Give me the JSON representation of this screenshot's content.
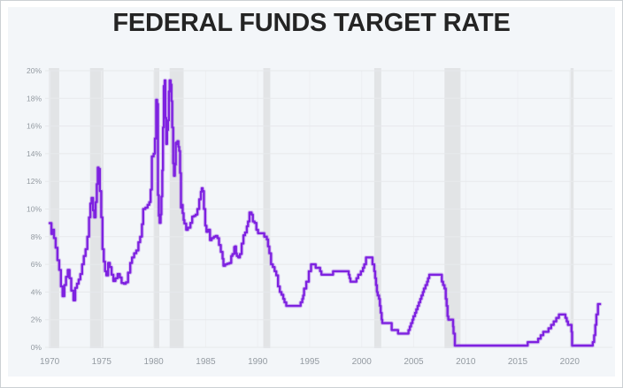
{
  "window": {
    "background": "#ffffff",
    "border_color": "#ccd0d4",
    "card_background": "#f3f6f9"
  },
  "header": {
    "title": "FEDERAL FUNDS TARGET RATE",
    "title_color": "#242424"
  },
  "chart_data": {
    "type": "line",
    "title": "FEDERAL FUNDS TARGET RATE",
    "xlabel": "",
    "ylabel": "",
    "xlim": [
      1969.57,
      2024.1
    ],
    "ylim": [
      0,
      20
    ],
    "x_ticks": [
      1970,
      1975,
      1980,
      1985,
      1990,
      1995,
      2000,
      2005,
      2010,
      2015,
      2020
    ],
    "y_ticks": [
      0,
      2,
      4,
      6,
      8,
      10,
      12,
      14,
      16,
      18,
      20
    ],
    "y_tick_suffix": "%",
    "grid": true,
    "legend_position": "none",
    "line_color": "#7e22e0",
    "line_halo_color": "rgba(126,34,224,0.25)",
    "axis_label_color": "#939aa1",
    "gridline_color": "#e7e9ec",
    "minor_vgrid_color": "#edeff2",
    "recession_band_color": "#e2e4e6",
    "recession_bands": [
      [
        1969.92,
        1970.92
      ],
      [
        1973.88,
        1975.17
      ],
      [
        1980.04,
        1980.54
      ],
      [
        1981.54,
        1982.88
      ],
      [
        1990.54,
        1991.21
      ],
      [
        2001.21,
        2001.88
      ],
      [
        2007.96,
        2009.5
      ],
      [
        2020.08,
        2020.38
      ]
    ],
    "series": [
      {
        "name": "Federal funds target rate",
        "interpolation": "step-after",
        "points": [
          [
            1970.0,
            8.98
          ],
          [
            1970.17,
            8.2
          ],
          [
            1970.29,
            8.5
          ],
          [
            1970.42,
            7.9
          ],
          [
            1970.58,
            7.2
          ],
          [
            1970.75,
            6.3
          ],
          [
            1970.92,
            5.6
          ],
          [
            1971.08,
            4.4
          ],
          [
            1971.25,
            3.7
          ],
          [
            1971.42,
            4.5
          ],
          [
            1971.58,
            5.1
          ],
          [
            1971.75,
            5.6
          ],
          [
            1971.92,
            5.0
          ],
          [
            1972.08,
            4.1
          ],
          [
            1972.29,
            3.4
          ],
          [
            1972.46,
            4.3
          ],
          [
            1972.63,
            4.6
          ],
          [
            1972.79,
            4.9
          ],
          [
            1972.96,
            5.3
          ],
          [
            1973.13,
            6.0
          ],
          [
            1973.29,
            6.6
          ],
          [
            1973.46,
            7.1
          ],
          [
            1973.63,
            8.0
          ],
          [
            1973.79,
            9.4
          ],
          [
            1973.92,
            10.4
          ],
          [
            1974.04,
            10.8
          ],
          [
            1974.17,
            9.9
          ],
          [
            1974.29,
            9.4
          ],
          [
            1974.42,
            10.5
          ],
          [
            1974.54,
            11.8
          ],
          [
            1974.63,
            13.0
          ],
          [
            1974.71,
            12.9
          ],
          [
            1974.83,
            11.3
          ],
          [
            1974.96,
            9.4
          ],
          [
            1975.08,
            7.1
          ],
          [
            1975.21,
            6.2
          ],
          [
            1975.33,
            5.5
          ],
          [
            1975.46,
            5.2
          ],
          [
            1975.63,
            6.1
          ],
          [
            1975.79,
            5.8
          ],
          [
            1975.96,
            5.25
          ],
          [
            1976.13,
            4.8
          ],
          [
            1976.33,
            5.0
          ],
          [
            1976.54,
            5.3
          ],
          [
            1976.75,
            5.05
          ],
          [
            1976.92,
            4.65
          ],
          [
            1977.13,
            4.6
          ],
          [
            1977.33,
            4.7
          ],
          [
            1977.54,
            5.4
          ],
          [
            1977.75,
            6.1
          ],
          [
            1977.92,
            6.5
          ],
          [
            1978.13,
            6.8
          ],
          [
            1978.33,
            7.0
          ],
          [
            1978.54,
            7.6
          ],
          [
            1978.71,
            8.0
          ],
          [
            1978.88,
            8.9
          ],
          [
            1979.0,
            10.0
          ],
          [
            1979.21,
            10.1
          ],
          [
            1979.42,
            10.3
          ],
          [
            1979.58,
            10.5
          ],
          [
            1979.71,
            11.4
          ],
          [
            1979.83,
            13.8
          ],
          [
            1980.0,
            14.0
          ],
          [
            1980.13,
            15.1
          ],
          [
            1980.25,
            17.9
          ],
          [
            1980.33,
            17.6
          ],
          [
            1980.42,
            11.0
          ],
          [
            1980.5,
            9.5
          ],
          [
            1980.58,
            9.0
          ],
          [
            1980.67,
            9.6
          ],
          [
            1980.75,
            10.9
          ],
          [
            1980.83,
            12.8
          ],
          [
            1980.9,
            15.9
          ],
          [
            1980.98,
            18.9
          ],
          [
            1981.06,
            19.3
          ],
          [
            1981.13,
            16.6
          ],
          [
            1981.21,
            14.7
          ],
          [
            1981.29,
            15.7
          ],
          [
            1981.38,
            16.4
          ],
          [
            1981.46,
            18.5
          ],
          [
            1981.54,
            19.3
          ],
          [
            1981.63,
            19.0
          ],
          [
            1981.71,
            17.8
          ],
          [
            1981.79,
            15.9
          ],
          [
            1981.88,
            13.3
          ],
          [
            1981.96,
            12.4
          ],
          [
            1982.04,
            13.2
          ],
          [
            1982.13,
            14.8
          ],
          [
            1982.21,
            14.7
          ],
          [
            1982.29,
            14.9
          ],
          [
            1982.38,
            14.5
          ],
          [
            1982.46,
            14.2
          ],
          [
            1982.54,
            12.6
          ],
          [
            1982.63,
            10.1
          ],
          [
            1982.71,
            10.3
          ],
          [
            1982.79,
            9.7
          ],
          [
            1982.88,
            9.2
          ],
          [
            1982.96,
            8.95
          ],
          [
            1983.13,
            8.5
          ],
          [
            1983.29,
            8.65
          ],
          [
            1983.54,
            9.0
          ],
          [
            1983.71,
            9.45
          ],
          [
            1983.88,
            9.5
          ],
          [
            1984.04,
            9.6
          ],
          [
            1984.21,
            10.0
          ],
          [
            1984.38,
            10.7
          ],
          [
            1984.54,
            11.25
          ],
          [
            1984.63,
            11.5
          ],
          [
            1984.71,
            11.3
          ],
          [
            1984.83,
            10.0
          ],
          [
            1984.96,
            8.8
          ],
          [
            1985.08,
            8.35
          ],
          [
            1985.25,
            8.5
          ],
          [
            1985.42,
            7.75
          ],
          [
            1985.58,
            7.9
          ],
          [
            1985.79,
            8.0
          ],
          [
            1985.96,
            8.05
          ],
          [
            1986.13,
            7.9
          ],
          [
            1986.29,
            7.4
          ],
          [
            1986.46,
            6.9
          ],
          [
            1986.63,
            6.4
          ],
          [
            1986.71,
            5.9
          ],
          [
            1986.88,
            6.0
          ],
          [
            1987.08,
            6.05
          ],
          [
            1987.29,
            6.1
          ],
          [
            1987.46,
            6.6
          ],
          [
            1987.58,
            6.75
          ],
          [
            1987.75,
            7.25
          ],
          [
            1987.83,
            7.3
          ],
          [
            1987.92,
            6.8
          ],
          [
            1988.0,
            6.6
          ],
          [
            1988.13,
            6.5
          ],
          [
            1988.29,
            6.75
          ],
          [
            1988.46,
            7.5
          ],
          [
            1988.63,
            8.1
          ],
          [
            1988.79,
            8.3
          ],
          [
            1988.96,
            8.75
          ],
          [
            1989.08,
            9.1
          ],
          [
            1989.21,
            9.75
          ],
          [
            1989.42,
            9.6
          ],
          [
            1989.54,
            9.1
          ],
          [
            1989.71,
            9.0
          ],
          [
            1989.88,
            8.5
          ],
          [
            1990.04,
            8.25
          ],
          [
            1990.46,
            8.25
          ],
          [
            1990.63,
            8.0
          ],
          [
            1990.88,
            7.8
          ],
          [
            1991.0,
            7.3
          ],
          [
            1991.13,
            6.8
          ],
          [
            1991.29,
            6.0
          ],
          [
            1991.46,
            5.8
          ],
          [
            1991.63,
            5.5
          ],
          [
            1991.79,
            5.2
          ],
          [
            1991.96,
            4.4
          ],
          [
            1992.13,
            4.0
          ],
          [
            1992.29,
            3.8
          ],
          [
            1992.46,
            3.5
          ],
          [
            1992.58,
            3.25
          ],
          [
            1992.75,
            3.0
          ],
          [
            1994.13,
            3.25
          ],
          [
            1994.29,
            3.5
          ],
          [
            1994.38,
            3.75
          ],
          [
            1994.46,
            4.25
          ],
          [
            1994.67,
            4.75
          ],
          [
            1994.92,
            5.5
          ],
          [
            1995.13,
            6.0
          ],
          [
            1995.58,
            5.75
          ],
          [
            1996.0,
            5.5
          ],
          [
            1996.13,
            5.25
          ],
          [
            1997.25,
            5.5
          ],
          [
            1998.75,
            5.25
          ],
          [
            1998.83,
            5.0
          ],
          [
            1998.92,
            4.75
          ],
          [
            1999.5,
            5.0
          ],
          [
            1999.67,
            5.25
          ],
          [
            1999.92,
            5.5
          ],
          [
            2000.13,
            5.75
          ],
          [
            2000.25,
            6.0
          ],
          [
            2000.42,
            6.5
          ],
          [
            2001.04,
            6.0
          ],
          [
            2001.21,
            5.5
          ],
          [
            2001.29,
            5.0
          ],
          [
            2001.38,
            4.5
          ],
          [
            2001.46,
            4.0
          ],
          [
            2001.54,
            3.75
          ],
          [
            2001.67,
            3.5
          ],
          [
            2001.75,
            3.0
          ],
          [
            2001.83,
            2.5
          ],
          [
            2001.92,
            2.0
          ],
          [
            2001.98,
            1.75
          ],
          [
            2002.88,
            1.25
          ],
          [
            2003.5,
            1.0
          ],
          [
            2004.5,
            1.25
          ],
          [
            2004.63,
            1.5
          ],
          [
            2004.75,
            1.75
          ],
          [
            2004.88,
            2.0
          ],
          [
            2004.98,
            2.25
          ],
          [
            2005.13,
            2.5
          ],
          [
            2005.25,
            2.75
          ],
          [
            2005.38,
            3.0
          ],
          [
            2005.5,
            3.25
          ],
          [
            2005.63,
            3.5
          ],
          [
            2005.75,
            3.75
          ],
          [
            2005.88,
            4.0
          ],
          [
            2005.98,
            4.25
          ],
          [
            2006.13,
            4.5
          ],
          [
            2006.29,
            4.75
          ],
          [
            2006.38,
            5.0
          ],
          [
            2006.5,
            5.25
          ],
          [
            2007.71,
            4.75
          ],
          [
            2007.83,
            4.5
          ],
          [
            2007.96,
            4.25
          ],
          [
            2008.08,
            3.5
          ],
          [
            2008.17,
            3.0
          ],
          [
            2008.25,
            2.25
          ],
          [
            2008.33,
            2.0
          ],
          [
            2008.79,
            1.5
          ],
          [
            2008.83,
            1.0
          ],
          [
            2008.96,
            0.125
          ],
          [
            2015.96,
            0.375
          ],
          [
            2016.96,
            0.625
          ],
          [
            2017.21,
            0.875
          ],
          [
            2017.46,
            1.125
          ],
          [
            2017.96,
            1.375
          ],
          [
            2018.21,
            1.625
          ],
          [
            2018.46,
            1.875
          ],
          [
            2018.71,
            2.125
          ],
          [
            2018.96,
            2.375
          ],
          [
            2019.58,
            2.125
          ],
          [
            2019.71,
            1.875
          ],
          [
            2019.83,
            1.625
          ],
          [
            2020.17,
            1.125
          ],
          [
            2020.23,
            0.125
          ],
          [
            2022.21,
            0.375
          ],
          [
            2022.35,
            0.875
          ],
          [
            2022.46,
            1.625
          ],
          [
            2022.56,
            2.375
          ],
          [
            2022.71,
            3.125
          ],
          [
            2022.79,
            3.125
          ]
        ]
      }
    ]
  }
}
